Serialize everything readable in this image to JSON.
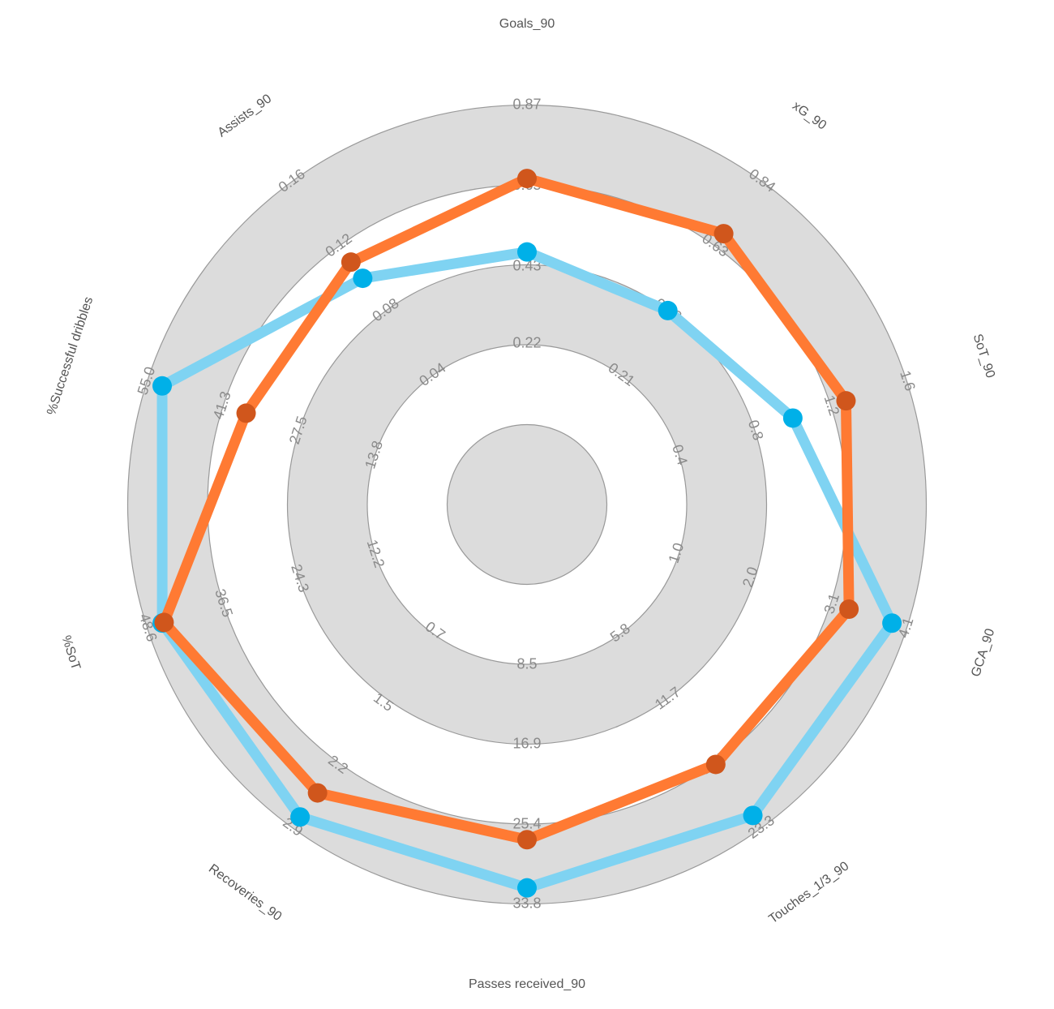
{
  "chart_data": {
    "type": "radar",
    "axes": [
      {
        "name": "Goals_90",
        "range": [
          0,
          0.87
        ],
        "ticks": [
          0.22,
          0.43,
          0.65,
          0.87
        ]
      },
      {
        "name": "xG_90",
        "range": [
          0,
          0.84
        ],
        "ticks": [
          0.21,
          0.42,
          0.63,
          0.84
        ]
      },
      {
        "name": "SoT_90",
        "range": [
          0,
          1.6
        ],
        "ticks": [
          0.4,
          0.8,
          1.2,
          1.6
        ]
      },
      {
        "name": "GCA_90",
        "range": [
          0,
          4.1
        ],
        "ticks": [
          {
            "value": 1,
            "label": "1.0"
          },
          {
            "value": 2,
            "label": "2.0"
          },
          3.1,
          4.1
        ]
      },
      {
        "name": "Touches_1/3_90",
        "range": [
          0,
          23.3
        ],
        "ticks": [
          5.8,
          11.7,
          17.5,
          23.3
        ]
      },
      {
        "name": "Passes received_90",
        "range": [
          0,
          33.8
        ],
        "ticks": [
          8.5,
          16.9,
          25.4,
          33.8
        ]
      },
      {
        "name": "Recoveries_90",
        "range": [
          0,
          2.9
        ],
        "ticks": [
          0.7,
          1.5,
          2.2,
          2.9
        ]
      },
      {
        "name": "%SoT",
        "range": [
          0,
          48.6
        ],
        "ticks": [
          12.2,
          24.3,
          36.5,
          48.6
        ]
      },
      {
        "name": "%Successful dribbles",
        "range": [
          0,
          55
        ],
        "ticks": [
          13.8,
          27.5,
          41.3,
          {
            "value": 55,
            "label": "55.0"
          }
        ]
      },
      {
        "name": "Assists_90",
        "range": [
          0,
          0.16
        ],
        "ticks": [
          0.04,
          0.08,
          0.12,
          0.16
        ]
      }
    ],
    "series": [
      {
        "color": "#7fd3f2",
        "marker_color": "#00b0e8",
        "values": [
          0.47,
          0.42,
          1.0,
          3.9,
          22.2,
          32.1,
          2.78,
          46.2,
          52.3,
          0.1
        ]
      },
      {
        "color": "#ff7a33",
        "marker_color": "#d0561c",
        "values": [
          0.67,
          0.67,
          1.28,
          3.32,
          17.6,
          27.0,
          2.51,
          45.9,
          37.1,
          0.11
        ]
      }
    ]
  }
}
